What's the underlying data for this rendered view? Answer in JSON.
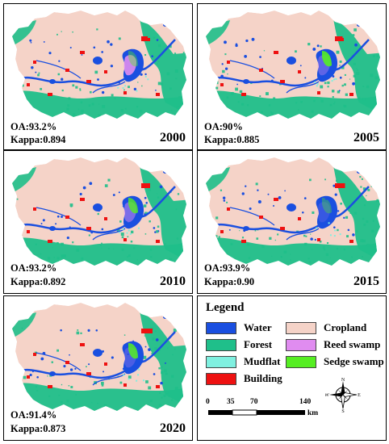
{
  "panels": [
    {
      "year": "2000",
      "oa": "OA:93.2%",
      "kappa": "Kappa:0.894",
      "variant": 0
    },
    {
      "year": "2005",
      "oa": "OA:90%",
      "kappa": "Kappa:0.885",
      "variant": 1
    },
    {
      "year": "2010",
      "oa": "OA:93.2%",
      "kappa": "Kappa:0.892",
      "variant": 2
    },
    {
      "year": "2015",
      "oa": "OA:93.9%",
      "kappa": "Kappa:0.90",
      "variant": 3
    },
    {
      "year": "2020",
      "oa": "OA:91.4%",
      "kappa": "Kappa:0.873",
      "variant": 4
    }
  ],
  "legend": {
    "title": "Legend",
    "items": [
      {
        "label": "Water",
        "color": "#1a4fe0"
      },
      {
        "label": "Forest",
        "color": "#1fbf8a"
      },
      {
        "label": "Mudflat",
        "color": "#7ff0e0"
      },
      {
        "label": "Building",
        "color": "#ee1111"
      },
      {
        "label": "Cropland",
        "color": "#f5d3c8"
      },
      {
        "label": "Reed swamp",
        "color": "#e08cf0"
      },
      {
        "label": "Sedge swamp",
        "color": "#55ee22"
      }
    ]
  },
  "scale_bar": {
    "ticks": [
      "0",
      "35",
      "70",
      "140"
    ],
    "unit": "km"
  },
  "compass": {
    "n": "N",
    "s": "S",
    "e": "E",
    "w": "W"
  }
}
